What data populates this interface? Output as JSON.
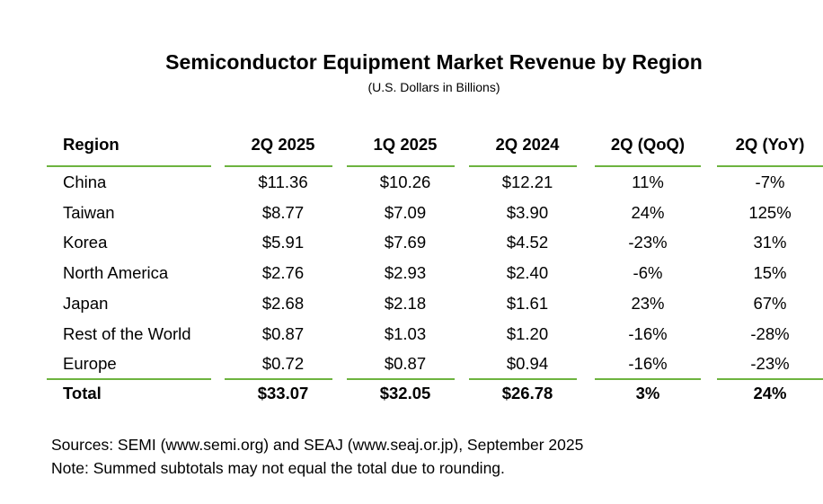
{
  "title": "Semiconductor Equipment Market Revenue by Region",
  "subtitle": "(U.S. Dollars in Billions)",
  "table": {
    "headers": [
      "Region",
      "2Q 2025",
      "1Q 2025",
      "2Q 2024",
      "2Q (QoQ)",
      "2Q (YoY)"
    ],
    "rows": [
      [
        "China",
        "$11.36",
        "$10.26",
        "$12.21",
        "11%",
        "-7%"
      ],
      [
        "Taiwan",
        "$8.77",
        "$7.09",
        "$3.90",
        "24%",
        "125%"
      ],
      [
        "Korea",
        "$5.91",
        "$7.69",
        "$4.52",
        "-23%",
        "31%"
      ],
      [
        "North America",
        "$2.76",
        "$2.93",
        "$2.40",
        "-6%",
        "15%"
      ],
      [
        "Japan",
        "$2.68",
        "$2.18",
        "$1.61",
        "23%",
        "67%"
      ],
      [
        "Rest of the World",
        "$0.87",
        "$1.03",
        "$1.20",
        "-16%",
        "-28%"
      ],
      [
        "Europe",
        "$0.72",
        "$0.87",
        "$0.94",
        "-16%",
        "-23%"
      ]
    ],
    "total": [
      "Total",
      "$33.07",
      "$32.05",
      "$26.78",
      "3%",
      "24%"
    ]
  },
  "footnotes": {
    "sources": "Sources: SEMI (www.semi.org) and SEAJ (www.seaj.or.jp), September 2025",
    "note": "Note: Summed subtotals may not equal the total due to rounding."
  },
  "colors": {
    "rule": "#6db33f"
  }
}
